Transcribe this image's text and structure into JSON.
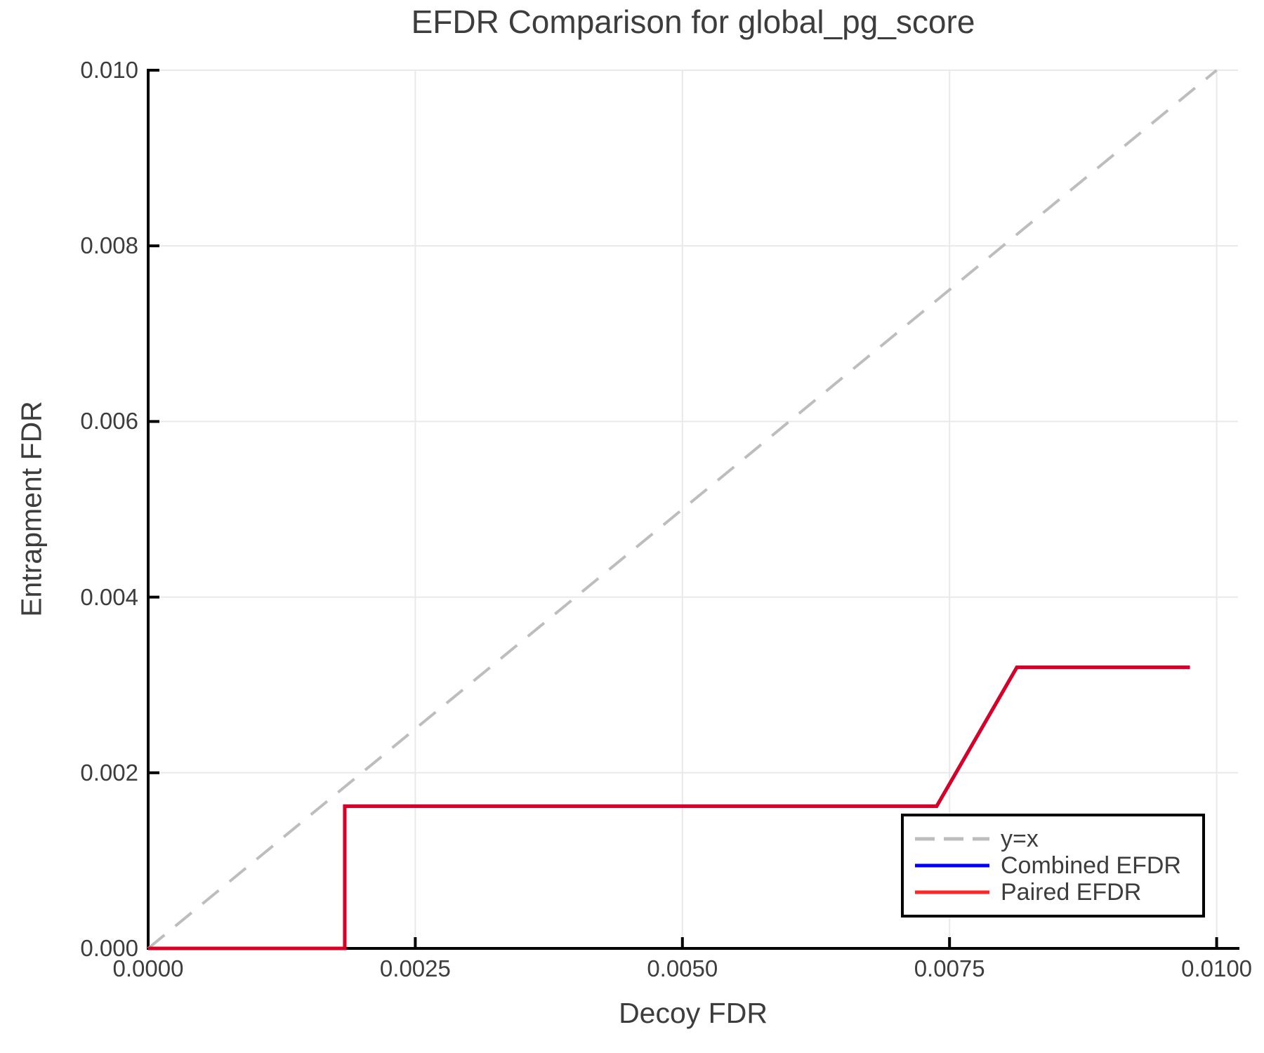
{
  "chart_data": {
    "type": "line",
    "title": "EFDR Comparison for global_pg_score",
    "xlabel": "Decoy FDR",
    "ylabel": "Entrapment FDR",
    "xlim": [
      0.0,
      0.0102
    ],
    "ylim": [
      0.0,
      0.01
    ],
    "grid": true,
    "grid_color": "#e9e9e9",
    "spine_color": "#000000",
    "text_color": "#3d3d3d",
    "legend_position": "lower-right",
    "legend_border_color": "#000000",
    "xticks": {
      "values": [
        0.0,
        0.0025,
        0.005,
        0.0075,
        0.01
      ],
      "labels": [
        "0.0000",
        "0.0025",
        "0.0050",
        "0.0075",
        "0.0100"
      ]
    },
    "yticks": {
      "values": [
        0.0,
        0.002,
        0.004,
        0.006,
        0.008,
        0.01
      ],
      "labels": [
        "0.000",
        "0.002",
        "0.004",
        "0.006",
        "0.008",
        "0.010"
      ]
    },
    "series": [
      {
        "name": "y=x",
        "style": "dashed",
        "color": "#bdbdbd",
        "opacity": 1,
        "width": 4,
        "x": [
          0.0,
          0.01
        ],
        "y": [
          0.0,
          0.01
        ]
      },
      {
        "name": "Combined EFDR",
        "style": "solid",
        "color": "#0000ff",
        "opacity": 1,
        "width": 5,
        "x": [
          0.0,
          0.00184,
          0.00184,
          0.00738,
          0.00813,
          0.00975
        ],
        "y": [
          0.0,
          0.0,
          0.00162,
          0.00162,
          0.0032,
          0.0032
        ]
      },
      {
        "name": "Paired EFDR",
        "style": "solid",
        "color": "#ff0000",
        "opacity": 0.85,
        "width": 5,
        "x": [
          0.0,
          0.00184,
          0.00184,
          0.00738,
          0.00813,
          0.00975
        ],
        "y": [
          0.0,
          0.0,
          0.00162,
          0.00162,
          0.0032,
          0.0032
        ]
      }
    ]
  }
}
